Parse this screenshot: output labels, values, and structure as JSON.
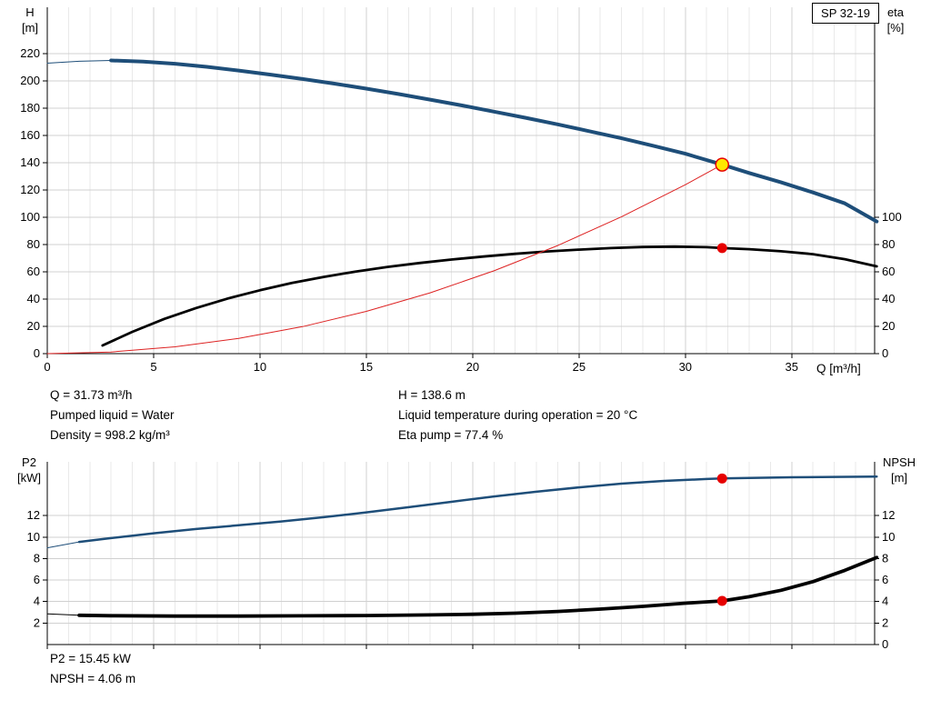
{
  "pump_model": "SP 32-19",
  "annotations": {
    "q": "Q = 31.73 m³/h",
    "pumped_liquid": "Pumped liquid = Water",
    "density": "Density = 998.2 kg/m³",
    "h": "H = 138.6 m",
    "liquid_temp": "Liquid temperature during operation = 20 °C",
    "eta_pump": "Eta pump = 77.4 %",
    "p2": "P2 = 15.45 kW",
    "npsh": "NPSH = 4.06 m"
  },
  "colors": {
    "curve_blue": "#1e4e79",
    "curve_black": "#000000",
    "curve_red": "#dd2222",
    "marker_red": "#e60000",
    "marker_yellow": "#ffe800",
    "grid_major": "#d0d0d0",
    "grid_minor": "#e9e9e9",
    "axis": "#000000"
  },
  "chart_data": [
    {
      "id": "head-efficiency-chart",
      "type": "line",
      "title": "SP 32-19",
      "x_axis": {
        "label": "Q [m³/h]",
        "min": 0,
        "max": 38.9,
        "ticks": [
          0,
          5,
          10,
          15,
          20,
          25,
          30,
          35
        ],
        "minor_step": 1,
        "show_labels": true
      },
      "y_left": {
        "label": "H [m]",
        "label_lines": [
          "H",
          "[m]"
        ],
        "min": 0,
        "max": 254,
        "ticks": [
          0,
          20,
          40,
          60,
          80,
          100,
          120,
          140,
          160,
          180,
          200,
          220
        ]
      },
      "y_right": {
        "label": "eta [%]",
        "label_lines": [
          "eta",
          "[%]"
        ],
        "min": 0,
        "max": 254,
        "ticks": [
          0,
          20,
          40,
          60,
          80,
          100
        ]
      },
      "series": [
        {
          "name": "head-curve",
          "axis": "left",
          "color": "curve_blue",
          "width": 4,
          "thin_until": 3,
          "points": [
            [
              0,
              213
            ],
            [
              1.5,
              214.4
            ],
            [
              3,
              215
            ],
            [
              4.5,
              214.2
            ],
            [
              6,
              212.6
            ],
            [
              7.5,
              210.3
            ],
            [
              9,
              207.6
            ],
            [
              10.5,
              204.6
            ],
            [
              12,
              201.4
            ],
            [
              13.5,
              198
            ],
            [
              15,
              194.3
            ],
            [
              16.5,
              190.4
            ],
            [
              18,
              186.3
            ],
            [
              19.5,
              182
            ],
            [
              21,
              177.5
            ],
            [
              22.5,
              172.9
            ],
            [
              24,
              168.1
            ],
            [
              25.5,
              163.1
            ],
            [
              27,
              157.9
            ],
            [
              28.5,
              152.4
            ],
            [
              30,
              146.6
            ],
            [
              31.73,
              138.6
            ],
            [
              33,
              132.5
            ],
            [
              34.5,
              125.6
            ],
            [
              36,
              118.2
            ],
            [
              37.5,
              110.2
            ],
            [
              39,
              96.9
            ]
          ]
        },
        {
          "name": "efficiency-curve",
          "axis": "right",
          "color": "curve_black",
          "width": 2.8,
          "points": [
            [
              2.6,
              6
            ],
            [
              4,
              16
            ],
            [
              5.5,
              25.5
            ],
            [
              7,
              33.5
            ],
            [
              8.5,
              40.5
            ],
            [
              10,
              46.5
            ],
            [
              11.5,
              51.8
            ],
            [
              13,
              56.3
            ],
            [
              14.5,
              60.2
            ],
            [
              16,
              63.6
            ],
            [
              17.5,
              66.5
            ],
            [
              19,
              69
            ],
            [
              20.5,
              71.2
            ],
            [
              22,
              73.2
            ],
            [
              23.5,
              74.9
            ],
            [
              25,
              76.3
            ],
            [
              26.5,
              77.4
            ],
            [
              28,
              78.2
            ],
            [
              29.5,
              78.5
            ],
            [
              31,
              78.1
            ],
            [
              31.73,
              77.4
            ],
            [
              33,
              76.6
            ],
            [
              34.5,
              75.1
            ],
            [
              36,
              72.9
            ],
            [
              37.5,
              69.3
            ],
            [
              39,
              64
            ]
          ]
        },
        {
          "name": "system-curve",
          "axis": "left",
          "color": "curve_red",
          "width": 1,
          "points": [
            [
              0,
              0
            ],
            [
              3,
              1.2
            ],
            [
              6,
              5
            ],
            [
              9,
              11.2
            ],
            [
              12,
              19.8
            ],
            [
              15,
              31
            ],
            [
              18,
              44.6
            ],
            [
              21,
              60.7
            ],
            [
              24,
              79.3
            ],
            [
              27,
              100.4
            ],
            [
              30,
              123.9
            ],
            [
              31.73,
              138.6
            ]
          ]
        }
      ],
      "markers": [
        {
          "name": "duty-point",
          "x": 31.73,
          "value": 138.6,
          "axis": "left",
          "style": "duty"
        },
        {
          "name": "efficiency-point",
          "x": 31.73,
          "value": 77.4,
          "axis": "right",
          "style": "dot"
        }
      ]
    },
    {
      "id": "power-npsh-chart",
      "type": "line",
      "x_axis": {
        "label": "Q [m³/h]",
        "min": 0,
        "max": 38.9,
        "ticks": [
          0,
          5,
          10,
          15,
          20,
          25,
          30,
          35
        ],
        "minor_step": 1,
        "show_labels": false
      },
      "y_left": {
        "label": "P2 [kW]",
        "label_lines": [
          "P2",
          "[kW]"
        ],
        "min": 0,
        "max": 17,
        "ticks": [
          2,
          4,
          6,
          8,
          10,
          12
        ]
      },
      "y_right": {
        "label": "NPSH [m]",
        "label_lines": [
          "NPSH",
          "[m]"
        ],
        "min": 0,
        "max": 17,
        "ticks": [
          0,
          2,
          4,
          6,
          8,
          10,
          12
        ]
      },
      "series": [
        {
          "name": "p2-curve",
          "axis": "left",
          "color": "curve_blue",
          "width": 2.5,
          "thin_until": 1.5,
          "points": [
            [
              0,
              9.0
            ],
            [
              1.5,
              9.55
            ],
            [
              3,
              9.9
            ],
            [
              5,
              10.35
            ],
            [
              7,
              10.75
            ],
            [
              9,
              11.1
            ],
            [
              11,
              11.45
            ],
            [
              13,
              11.85
            ],
            [
              15,
              12.3
            ],
            [
              17,
              12.78
            ],
            [
              19,
              13.28
            ],
            [
              21,
              13.78
            ],
            [
              23,
              14.22
            ],
            [
              25,
              14.62
            ],
            [
              27,
              14.97
            ],
            [
              29,
              15.22
            ],
            [
              31,
              15.4
            ],
            [
              31.73,
              15.45
            ],
            [
              33,
              15.5
            ],
            [
              35,
              15.56
            ],
            [
              37,
              15.6
            ],
            [
              39,
              15.63
            ]
          ]
        },
        {
          "name": "npsh-curve",
          "axis": "right",
          "color": "curve_black",
          "width": 3.8,
          "thin_until": 1.5,
          "points": [
            [
              0,
              2.85
            ],
            [
              1.5,
              2.72
            ],
            [
              3,
              2.68
            ],
            [
              6,
              2.65
            ],
            [
              9,
              2.65
            ],
            [
              12,
              2.67
            ],
            [
              15,
              2.7
            ],
            [
              18,
              2.76
            ],
            [
              20,
              2.82
            ],
            [
              22,
              2.92
            ],
            [
              24,
              3.08
            ],
            [
              26,
              3.3
            ],
            [
              28,
              3.55
            ],
            [
              30,
              3.85
            ],
            [
              31.73,
              4.06
            ],
            [
              33,
              4.45
            ],
            [
              34.5,
              5.05
            ],
            [
              36,
              5.85
            ],
            [
              37.5,
              6.9
            ],
            [
              39,
              8.1
            ]
          ]
        }
      ],
      "markers": [
        {
          "name": "p2-point",
          "x": 31.73,
          "value": 15.45,
          "axis": "left",
          "style": "dot"
        },
        {
          "name": "npsh-point",
          "x": 31.73,
          "value": 4.06,
          "axis": "right",
          "style": "dot"
        }
      ]
    }
  ]
}
